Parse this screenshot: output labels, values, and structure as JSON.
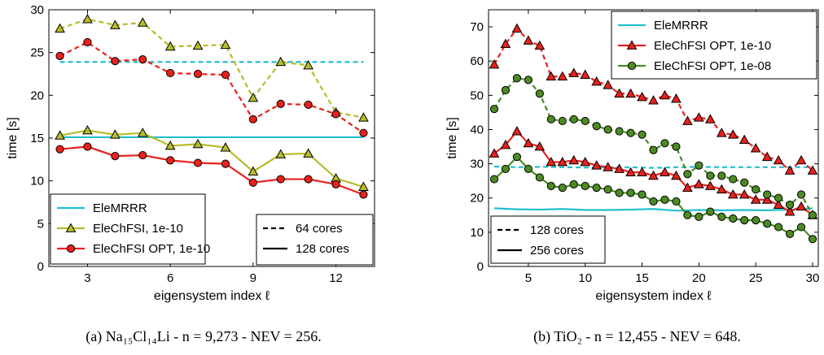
{
  "chart_data": [
    {
      "type": "line",
      "xlabel": "eigensystem index ℓ",
      "ylabel": "time [s]",
      "xlim": [
        1.6,
        13.4
      ],
      "ylim": [
        0,
        30
      ],
      "xticks": [
        3,
        6,
        9,
        12
      ],
      "yticks": [
        0,
        5,
        10,
        15,
        20,
        25,
        30
      ],
      "grid": false,
      "caption": "(a) Na₁₅Cl₁₄Li - n = 9,273 - NEV = 256.",
      "legend_position": "lower-left",
      "series": [
        {
          "name": "EleMRRR",
          "style_legend": "line",
          "color": "#23bfd0",
          "marker": "none",
          "x": [
            2,
            13
          ],
          "y_64": [
            23.9,
            23.9
          ],
          "y_128": [
            15.1,
            15.1
          ]
        },
        {
          "name": "EleChFSI, 1e-10",
          "color": "#b8bc2a",
          "marker": "triangle",
          "x": [
            2,
            3,
            4,
            5,
            6,
            7,
            8,
            9,
            10,
            11,
            12,
            13
          ],
          "y_64": [
            27.8,
            28.9,
            28.2,
            28.5,
            25.7,
            25.8,
            25.9,
            19.7,
            23.9,
            23.5,
            18.0,
            17.4
          ],
          "y_128": [
            15.3,
            15.9,
            15.4,
            15.6,
            14.1,
            14.3,
            13.9,
            11.1,
            13.1,
            13.2,
            10.3,
            9.3
          ]
        },
        {
          "name": "EleChFSI OPT, 1e-10",
          "color": "#e8211d",
          "marker": "circle",
          "x": [
            2,
            3,
            4,
            5,
            6,
            7,
            8,
            9,
            10,
            11,
            12,
            13
          ],
          "y_64": [
            24.6,
            26.2,
            24.0,
            24.2,
            22.6,
            22.5,
            22.4,
            17.2,
            19.0,
            18.9,
            17.8,
            15.6
          ],
          "y_128": [
            13.7,
            14.0,
            12.9,
            13.0,
            12.4,
            12.1,
            12.0,
            9.8,
            10.2,
            10.2,
            9.6,
            8.4
          ]
        }
      ],
      "cores_legend": [
        {
          "label": "64 cores",
          "dash": true
        },
        {
          "label": "128 cores",
          "dash": false
        }
      ]
    },
    {
      "type": "line",
      "xlabel": "eigensystem index ℓ",
      "ylabel": "time [s]",
      "xlim": [
        1.5,
        30.5
      ],
      "ylim": [
        0,
        75
      ],
      "xticks": [
        5,
        10,
        15,
        20,
        25,
        30
      ],
      "yticks": [
        0,
        10,
        20,
        30,
        40,
        50,
        60,
        70
      ],
      "grid": false,
      "caption": "(b) TiO₂ - n = 12,455 - NEV = 648.",
      "legend_position": "upper-right",
      "series": [
        {
          "name": "EleMRRR",
          "color": "#23bfd0",
          "marker": "none",
          "x": [
            2,
            4,
            6,
            8,
            10,
            12,
            14,
            16,
            18,
            20,
            22,
            24,
            26,
            28,
            30
          ],
          "y_128": [
            29.2,
            29.0,
            29.1,
            29.0,
            28.9,
            29.0,
            29.0,
            28.8,
            29.0,
            29.1,
            29.0,
            29.0,
            29.0,
            29.0,
            29.0
          ],
          "y_256": [
            17.0,
            16.7,
            16.6,
            16.8,
            16.5,
            16.5,
            16.6,
            16.8,
            16.3,
            16.5,
            16.4,
            16.5,
            16.4,
            16.6,
            17.0
          ]
        },
        {
          "name": "EleChFSI OPT, 1e-10",
          "color": "#e8211d",
          "marker": "triangle",
          "x": [
            2,
            3,
            4,
            5,
            6,
            7,
            8,
            9,
            10,
            11,
            12,
            13,
            14,
            15,
            16,
            17,
            18,
            19,
            20,
            21,
            22,
            23,
            24,
            25,
            26,
            27,
            28,
            29,
            30
          ],
          "y_128": [
            59.0,
            65.0,
            69.5,
            66.0,
            64.5,
            55.5,
            55.5,
            56.5,
            56.0,
            54.0,
            53.0,
            50.5,
            50.5,
            49.5,
            48.5,
            50.0,
            49.0,
            42.5,
            43.5,
            43.0,
            39.0,
            38.5,
            37.0,
            34.5,
            32.0,
            31.0,
            28.0,
            31.0,
            28.0
          ],
          "y_256": [
            33.0,
            35.5,
            39.5,
            36.0,
            35.0,
            30.5,
            30.5,
            31.0,
            30.5,
            29.5,
            29.0,
            28.5,
            27.5,
            27.5,
            26.5,
            27.5,
            26.5,
            23.0,
            24.0,
            23.5,
            22.5,
            21.0,
            21.0,
            19.5,
            19.5,
            18.0,
            16.0,
            17.5,
            15.0
          ]
        },
        {
          "name": "EleChFSI OPT, 1e-08",
          "color": "#4c8b24",
          "marker": "circle",
          "x": [
            2,
            3,
            4,
            5,
            6,
            7,
            8,
            9,
            10,
            11,
            12,
            13,
            14,
            15,
            16,
            17,
            18,
            19,
            20,
            21,
            22,
            23,
            24,
            25,
            26,
            27,
            28,
            29,
            30
          ],
          "y_128": [
            46.0,
            51.5,
            55.0,
            54.5,
            50.5,
            43.0,
            42.5,
            43.0,
            42.5,
            41.0,
            40.0,
            39.5,
            39.0,
            38.5,
            34.0,
            36.0,
            35.0,
            27.0,
            29.5,
            26.5,
            26.5,
            25.5,
            24.5,
            22.5,
            21.0,
            20.0,
            18.0,
            21.0,
            15.0
          ],
          "y_256": [
            25.5,
            28.5,
            32.0,
            28.5,
            26.0,
            23.5,
            23.0,
            24.0,
            23.5,
            23.0,
            22.5,
            21.5,
            21.5,
            21.0,
            19.0,
            19.5,
            19.0,
            15.0,
            14.5,
            16.0,
            14.5,
            14.0,
            13.5,
            13.5,
            12.5,
            11.5,
            9.5,
            11.5,
            8.0
          ]
        }
      ],
      "cores_legend": [
        {
          "label": "128 cores",
          "dash": true
        },
        {
          "label": "256 cores",
          "dash": false
        }
      ]
    }
  ]
}
